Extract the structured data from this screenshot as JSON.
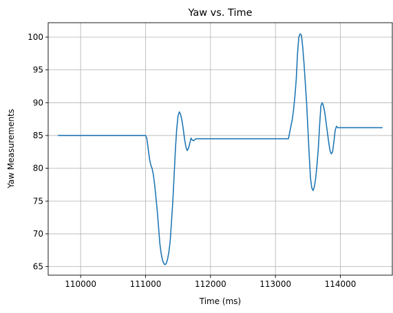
{
  "chart_data": {
    "type": "line",
    "title": "Yaw vs. Time",
    "xlabel": "Time (ms)",
    "ylabel": "Yaw Measurements",
    "xlim": [
      109500,
      114800
    ],
    "ylim": [
      63.7,
      102.2
    ],
    "xticks": [
      110000,
      111000,
      112000,
      113000,
      114000
    ],
    "yticks": [
      65,
      70,
      75,
      80,
      85,
      90,
      95,
      100
    ],
    "grid": true,
    "series": [
      {
        "color": "#1f77b4",
        "x": [
          109650,
          110000,
          110500,
          111000,
          111020,
          111040,
          111060,
          111080,
          111100,
          111120,
          111140,
          111160,
          111180,
          111200,
          111220,
          111240,
          111260,
          111280,
          111300,
          111320,
          111340,
          111360,
          111380,
          111400,
          111420,
          111440,
          111460,
          111480,
          111500,
          111520,
          111540,
          111560,
          111580,
          111600,
          111620,
          111640,
          111660,
          111680,
          111700,
          111720,
          111740,
          111760,
          111780,
          111800,
          111850,
          111900,
          112000,
          112500,
          113000,
          113200,
          113220,
          113240,
          113260,
          113280,
          113300,
          113320,
          113340,
          113360,
          113380,
          113400,
          113420,
          113440,
          113460,
          113480,
          113500,
          113520,
          113540,
          113560,
          113580,
          113600,
          113620,
          113640,
          113660,
          113680,
          113700,
          113720,
          113740,
          113760,
          113780,
          113800,
          113820,
          113840,
          113860,
          113880,
          113900,
          113920,
          113940,
          113960,
          113980,
          114000,
          114020,
          114040,
          114060,
          114080,
          114100,
          114200,
          114400,
          114650
        ],
        "y": [
          85,
          85,
          85,
          85,
          84.5,
          83,
          81.5,
          80.5,
          80,
          79,
          77.5,
          75.5,
          73.5,
          71,
          68.5,
          67,
          66,
          65.5,
          65.3,
          65.5,
          66.2,
          67.3,
          69,
          72,
          75,
          79,
          83,
          86,
          88,
          88.6,
          88.2,
          87.3,
          86,
          84.5,
          83.3,
          82.7,
          83,
          83.8,
          84.6,
          84.3,
          84.2,
          84.4,
          84.5,
          84.5,
          84.5,
          84.5,
          84.5,
          84.5,
          84.5,
          84.5,
          85.5,
          86.5,
          87.5,
          89,
          91,
          93.5,
          97.5,
          100,
          100.5,
          100.3,
          98.5,
          96,
          93,
          90,
          86,
          82,
          78.5,
          77,
          76.6,
          77.2,
          78.5,
          80.5,
          83,
          86.5,
          89.5,
          90,
          89.5,
          88.5,
          87,
          85.5,
          84,
          82.7,
          82.2,
          82.5,
          84,
          85.8,
          86.4,
          86.2,
          86.2,
          86.2,
          86.2,
          86.2,
          86.2,
          86.2,
          86.2,
          86.2,
          86.2,
          86.2
        ]
      }
    ]
  }
}
